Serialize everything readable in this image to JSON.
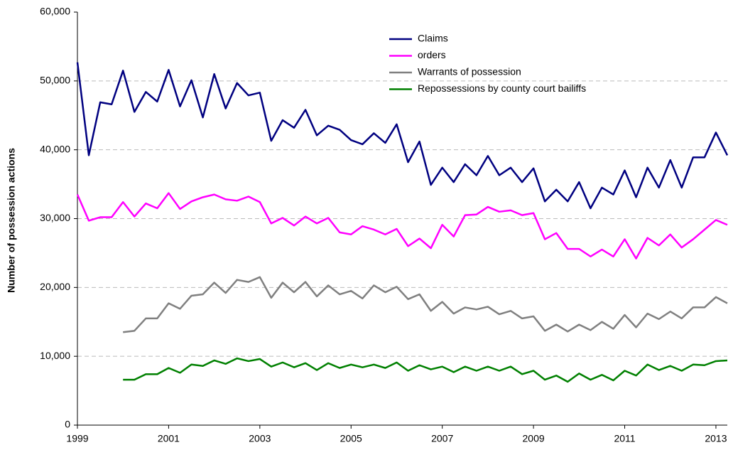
{
  "chart_data": {
    "type": "line",
    "y_label": "Number of possession actions",
    "x": [
      1999,
      1999.25,
      1999.5,
      1999.75,
      2000,
      2000.25,
      2000.5,
      2000.75,
      2001,
      2001.25,
      2001.5,
      2001.75,
      2002,
      2002.25,
      2002.5,
      2002.75,
      2003,
      2003.25,
      2003.5,
      2003.75,
      2004,
      2004.25,
      2004.5,
      2004.75,
      2005,
      2005.25,
      2005.5,
      2005.75,
      2006,
      2006.25,
      2006.5,
      2006.75,
      2007,
      2007.25,
      2007.5,
      2007.75,
      2008,
      2008.25,
      2008.5,
      2008.75,
      2009,
      2009.25,
      2009.5,
      2009.75,
      2010,
      2010.25,
      2010.5,
      2010.75,
      2011,
      2011.25,
      2011.5,
      2011.75,
      2012,
      2012.25,
      2012.5,
      2012.75,
      2013,
      2013.25
    ],
    "series": [
      {
        "name": "Claims",
        "color": "#000080",
        "values": [
          52700,
          39200,
          46900,
          46600,
          51500,
          45500,
          48400,
          47000,
          51600,
          46300,
          50100,
          44700,
          51000,
          46000,
          49700,
          47900,
          48300,
          41300,
          44300,
          43200,
          45800,
          42100,
          43500,
          42900,
          41400,
          40800,
          42400,
          41000,
          43700,
          38200,
          41200,
          34900,
          37400,
          35300,
          37900,
          36300,
          39100,
          36300,
          37400,
          35300,
          37300,
          32500,
          34200,
          32500,
          35300,
          31500,
          34500,
          33500,
          37000,
          33100,
          37400,
          34500,
          38500,
          34500,
          38900,
          38900,
          42500,
          39200
        ]
      },
      {
        "name": "orders",
        "color": "#ff00ff",
        "values": [
          33500,
          29700,
          30200,
          30200,
          32400,
          30300,
          32200,
          31500,
          33700,
          31400,
          32500,
          33100,
          33500,
          32800,
          32600,
          33200,
          32400,
          29300,
          30100,
          29000,
          30300,
          29300,
          30100,
          28000,
          27700,
          28900,
          28400,
          27700,
          28500,
          26000,
          27100,
          25700,
          29100,
          27400,
          30500,
          30600,
          31700,
          31000,
          31200,
          30500,
          30800,
          27000,
          27900,
          25600,
          25600,
          24500,
          25500,
          24500,
          27000,
          24200,
          27200,
          26100,
          27700,
          25800,
          27000,
          28400,
          29800,
          29100
        ]
      },
      {
        "name": "Warrants of possession",
        "color": "#808080",
        "values": [
          null,
          null,
          null,
          null,
          13500,
          13700,
          15500,
          15500,
          17700,
          16900,
          18800,
          19000,
          20700,
          19200,
          21100,
          20800,
          21500,
          18500,
          20700,
          19300,
          20800,
          18700,
          20300,
          19000,
          19500,
          18400,
          20300,
          19300,
          20100,
          18300,
          19000,
          16600,
          17900,
          16200,
          17100,
          16800,
          17200,
          16100,
          16600,
          15500,
          15800,
          13700,
          14600,
          13600,
          14600,
          13800,
          15000,
          14000,
          16000,
          14200,
          16200,
          15400,
          16500,
          15500,
          17100,
          17100,
          18600,
          17700
        ]
      },
      {
        "name": "Repossessions by county court bailiffs",
        "color": "#008000",
        "values": [
          null,
          null,
          null,
          null,
          6600,
          6600,
          7400,
          7400,
          8300,
          7600,
          8800,
          8600,
          9400,
          8900,
          9700,
          9300,
          9600,
          8500,
          9100,
          8400,
          9000,
          8000,
          9000,
          8300,
          8800,
          8400,
          8800,
          8300,
          9100,
          7900,
          8700,
          8100,
          8500,
          7700,
          8500,
          7900,
          8500,
          7900,
          8500,
          7400,
          7900,
          6600,
          7200,
          6300,
          7500,
          6600,
          7300,
          6500,
          7900,
          7200,
          8800,
          8000,
          8600,
          7900,
          8800,
          8700,
          9300,
          9400
        ]
      }
    ],
    "xlim": [
      1999,
      2013.25
    ],
    "xticks": [
      1999,
      2001,
      2003,
      2005,
      2007,
      2009,
      2011,
      2013
    ],
    "ylim": [
      0,
      60000
    ],
    "yticks": [
      0,
      {
        "value": 10000,
        "label": "10,000"
      },
      {
        "value": 20000,
        "label": "20,000"
      },
      {
        "value": 30000,
        "label": "30,000"
      },
      {
        "value": 40000,
        "label": "40,000"
      },
      {
        "value": 50000,
        "label": "50,000"
      },
      {
        "value": 60000,
        "label": "60,000"
      }
    ],
    "grid": true
  }
}
